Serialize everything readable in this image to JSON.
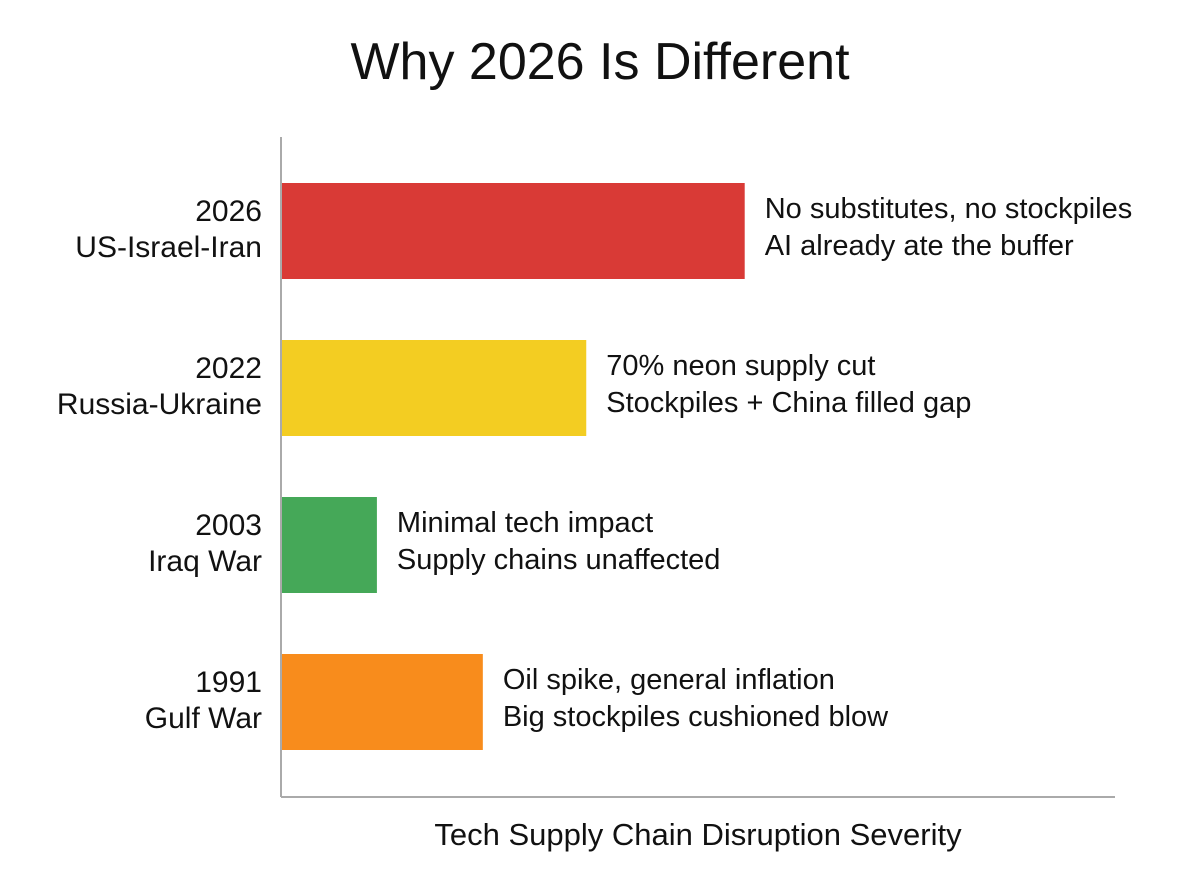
{
  "chart_data": {
    "type": "bar",
    "orientation": "horizontal",
    "title": "Why 2026 Is Different",
    "xlabel": "Tech Supply Chain Disruption Severity",
    "ylabel": "",
    "xlim": [
      0,
      100
    ],
    "grid": false,
    "bars": [
      {
        "year": "2026",
        "event": "US-Israel-Iran",
        "value": 55.6,
        "color": "#d93a36",
        "annotation": [
          "No substitutes, no stockpiles",
          "AI already ate the buffer"
        ]
      },
      {
        "year": "2022",
        "event": "Russia-Ukraine",
        "value": 36.6,
        "color": "#f3cd22",
        "annotation": [
          "70% neon supply cut",
          "Stockpiles + China filled gap"
        ]
      },
      {
        "year": "2003",
        "event": "Iraq War",
        "value": 11.5,
        "color": "#45a858",
        "annotation": [
          "Minimal tech impact",
          "Supply chains unaffected"
        ]
      },
      {
        "year": "1991",
        "event": "Gulf War",
        "value": 24.2,
        "color": "#f88c1c",
        "annotation": [
          "Oil spike, general inflation",
          "Big stockpiles cushioned blow"
        ]
      }
    ]
  }
}
